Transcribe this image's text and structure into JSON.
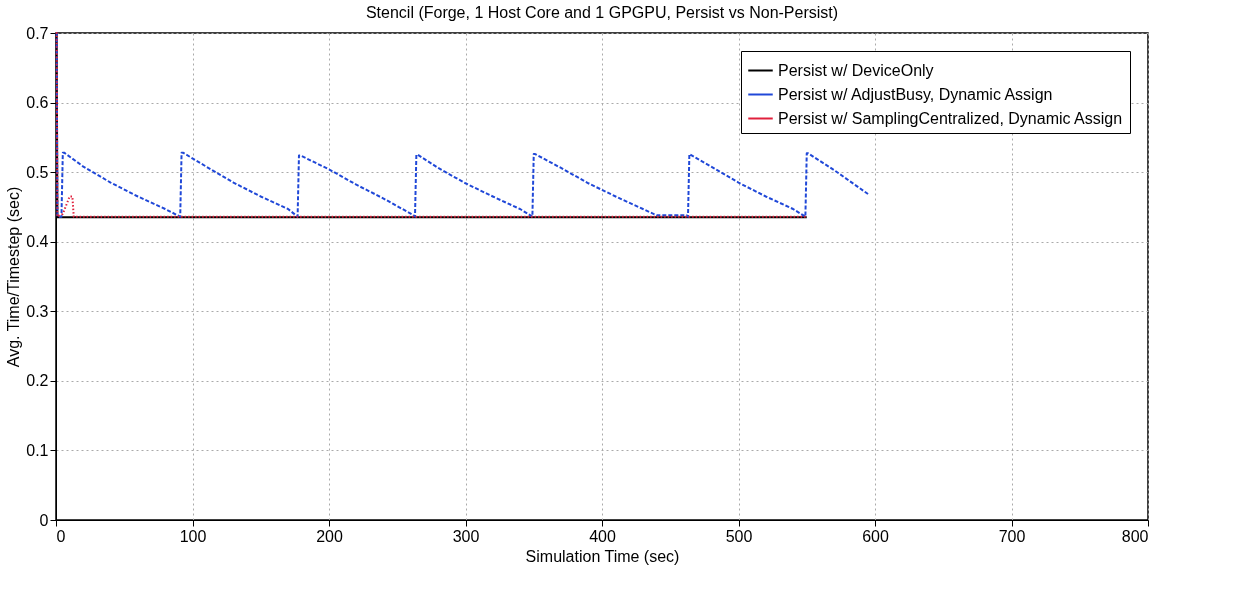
{
  "chart_data": {
    "type": "line",
    "title": "Stencil (Forge, 1 Host Core and 1 GPGPU, Persist vs Non-Persist)",
    "xlabel": "Simulation Time (sec)",
    "ylabel": "Avg. Time/Timestep (sec)",
    "xlim": [
      0,
      800
    ],
    "ylim": [
      0,
      0.7
    ],
    "xticks": [
      0,
      100,
      200,
      300,
      400,
      500,
      600,
      700,
      800
    ],
    "yticks": [
      0,
      0.1,
      0.2,
      0.3,
      0.4,
      0.5,
      0.6,
      0.7
    ],
    "grid": true,
    "legend": "top right",
    "marker": "none",
    "series": [
      {
        "name": "Persist w/ DeviceOnly",
        "color": "#000000",
        "line_style": "solid",
        "x": [
          0,
          0.5,
          1,
          50,
          100,
          150,
          200,
          250,
          300,
          350,
          400,
          450,
          500,
          550
        ],
        "values": [
          0.7,
          0.7,
          0.435,
          0.435,
          0.435,
          0.435,
          0.435,
          0.435,
          0.435,
          0.435,
          0.435,
          0.435,
          0.435,
          0.435
        ]
      },
      {
        "name": "Persist w/ AdjustBusy, Dynamic Assign",
        "color": "#2048d8",
        "line_style": "dashed",
        "x": [
          0,
          0.5,
          1,
          4,
          5,
          6,
          20,
          40,
          60,
          80,
          91,
          92,
          93,
          110,
          130,
          150,
          170,
          177,
          178,
          179,
          200,
          220,
          240,
          262,
          263,
          264,
          265,
          280,
          300,
          320,
          340,
          349,
          350,
          351,
          370,
          390,
          410,
          430,
          440,
          462,
          463,
          464,
          480,
          500,
          520,
          540,
          549,
          550,
          551,
          570,
          596
        ],
        "values": [
          0.7,
          0.7,
          0.436,
          0.436,
          0.528,
          0.528,
          0.508,
          0.485,
          0.465,
          0.447,
          0.436,
          0.528,
          0.528,
          0.508,
          0.485,
          0.465,
          0.447,
          0.436,
          0.524,
          0.524,
          0.504,
          0.482,
          0.462,
          0.438,
          0.436,
          0.525,
          0.525,
          0.506,
          0.484,
          0.465,
          0.447,
          0.436,
          0.526,
          0.526,
          0.506,
          0.484,
          0.465,
          0.447,
          0.438,
          0.438,
          0.436,
          0.526,
          0.508,
          0.485,
          0.465,
          0.447,
          0.436,
          0.527,
          0.527,
          0.503,
          0.467
        ]
      },
      {
        "name": "Persist w/ SamplingCentralized, Dynamic Assign",
        "color": "#e0203c",
        "line_style": "dotted",
        "x": [
          0,
          0.5,
          1,
          5,
          8,
          10,
          12,
          13,
          50,
          100,
          150,
          200,
          250,
          300,
          350,
          400,
          450,
          500,
          550
        ],
        "values": [
          0.7,
          0.7,
          0.436,
          0.44,
          0.455,
          0.465,
          0.465,
          0.436,
          0.436,
          0.436,
          0.436,
          0.436,
          0.436,
          0.436,
          0.436,
          0.436,
          0.436,
          0.436,
          0.436
        ]
      }
    ]
  }
}
